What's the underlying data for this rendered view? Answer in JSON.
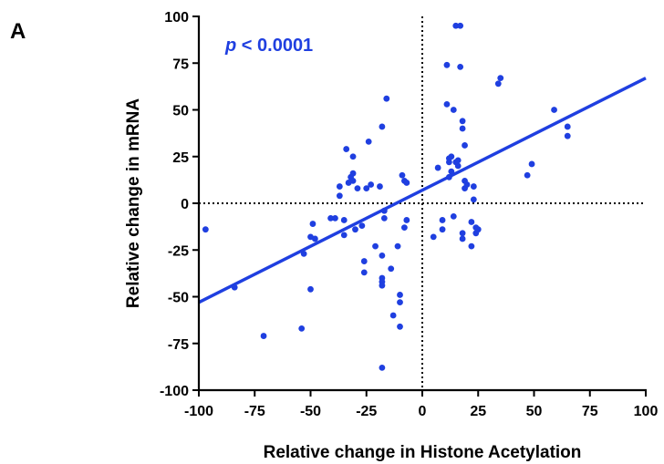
{
  "panel_label": "A",
  "colors": {
    "accent": "#1f3fe0",
    "axis": "#000000"
  },
  "chart_data": {
    "type": "scatter",
    "title": "",
    "xlabel": "Relative change in Histone Acetylation",
    "ylabel": "Relative change in mRNA",
    "xlim": [
      -100,
      100
    ],
    "ylim": [
      -100,
      100
    ],
    "xticks": [
      -100,
      -75,
      -50,
      -25,
      0,
      25,
      50,
      75,
      100
    ],
    "yticks": [
      -100,
      -75,
      -50,
      -25,
      0,
      25,
      50,
      75,
      100
    ],
    "grid": false,
    "reference_lines": {
      "x": 0,
      "y": 0,
      "style": "dotted"
    },
    "annotation": {
      "p_symbol": "p",
      "p_rest": " < 0.0001"
    },
    "fit_line": {
      "x": [
        -100,
        100
      ],
      "y": [
        -53,
        67
      ]
    },
    "points": [
      [
        -97,
        -14
      ],
      [
        -84,
        -45
      ],
      [
        -71,
        -71
      ],
      [
        -54,
        -67
      ],
      [
        -53,
        -27
      ],
      [
        -50,
        -46
      ],
      [
        -50,
        -18
      ],
      [
        -49,
        -11
      ],
      [
        -48,
        -19
      ],
      [
        -41,
        -8
      ],
      [
        -39,
        -8
      ],
      [
        -37,
        4
      ],
      [
        -37,
        9
      ],
      [
        -35,
        -9
      ],
      [
        -35,
        -17
      ],
      [
        -34,
        29
      ],
      [
        -33,
        11
      ],
      [
        -32,
        14
      ],
      [
        -31,
        12
      ],
      [
        -31,
        16
      ],
      [
        -31,
        25
      ],
      [
        -30,
        -14
      ],
      [
        -29,
        8
      ],
      [
        -27,
        -12
      ],
      [
        -26,
        -31
      ],
      [
        -26,
        -37
      ],
      [
        -25,
        8
      ],
      [
        -24,
        33
      ],
      [
        -23,
        10
      ],
      [
        -21,
        -23
      ],
      [
        -19,
        9
      ],
      [
        -18,
        -28
      ],
      [
        -18,
        41
      ],
      [
        -18,
        -40
      ],
      [
        -18,
        -42
      ],
      [
        -18,
        -44
      ],
      [
        -17,
        -8
      ],
      [
        -17,
        -4
      ],
      [
        -16,
        56
      ],
      [
        -14,
        -35
      ],
      [
        -13,
        -60
      ],
      [
        -11,
        -23
      ],
      [
        -10,
        -49
      ],
      [
        -10,
        -53
      ],
      [
        -10,
        -66
      ],
      [
        -9,
        15
      ],
      [
        -8,
        12
      ],
      [
        -8,
        -13
      ],
      [
        -7,
        11
      ],
      [
        -7,
        -9
      ],
      [
        -18,
        -88
      ],
      [
        5,
        -18
      ],
      [
        7,
        19
      ],
      [
        9,
        -9
      ],
      [
        9,
        -14
      ],
      [
        11,
        74
      ],
      [
        11,
        53
      ],
      [
        12,
        24
      ],
      [
        12,
        22
      ],
      [
        12,
        14
      ],
      [
        13,
        25
      ],
      [
        13,
        17
      ],
      [
        14,
        50
      ],
      [
        14,
        -7
      ],
      [
        15,
        95
      ],
      [
        15,
        22
      ],
      [
        16,
        20
      ],
      [
        16,
        23
      ],
      [
        17,
        73
      ],
      [
        17,
        95
      ],
      [
        18,
        44
      ],
      [
        18,
        40
      ],
      [
        18,
        -16
      ],
      [
        18,
        -19
      ],
      [
        19,
        31
      ],
      [
        19,
        12
      ],
      [
        19,
        8
      ],
      [
        20,
        10
      ],
      [
        22,
        -10
      ],
      [
        22,
        -23
      ],
      [
        23,
        9
      ],
      [
        23,
        2
      ],
      [
        24,
        -13
      ],
      [
        24,
        -16
      ],
      [
        25,
        -14
      ],
      [
        34,
        64
      ],
      [
        35,
        67
      ],
      [
        47,
        15
      ],
      [
        49,
        21
      ],
      [
        59,
        50
      ],
      [
        65,
        41
      ],
      [
        65,
        36
      ]
    ]
  }
}
